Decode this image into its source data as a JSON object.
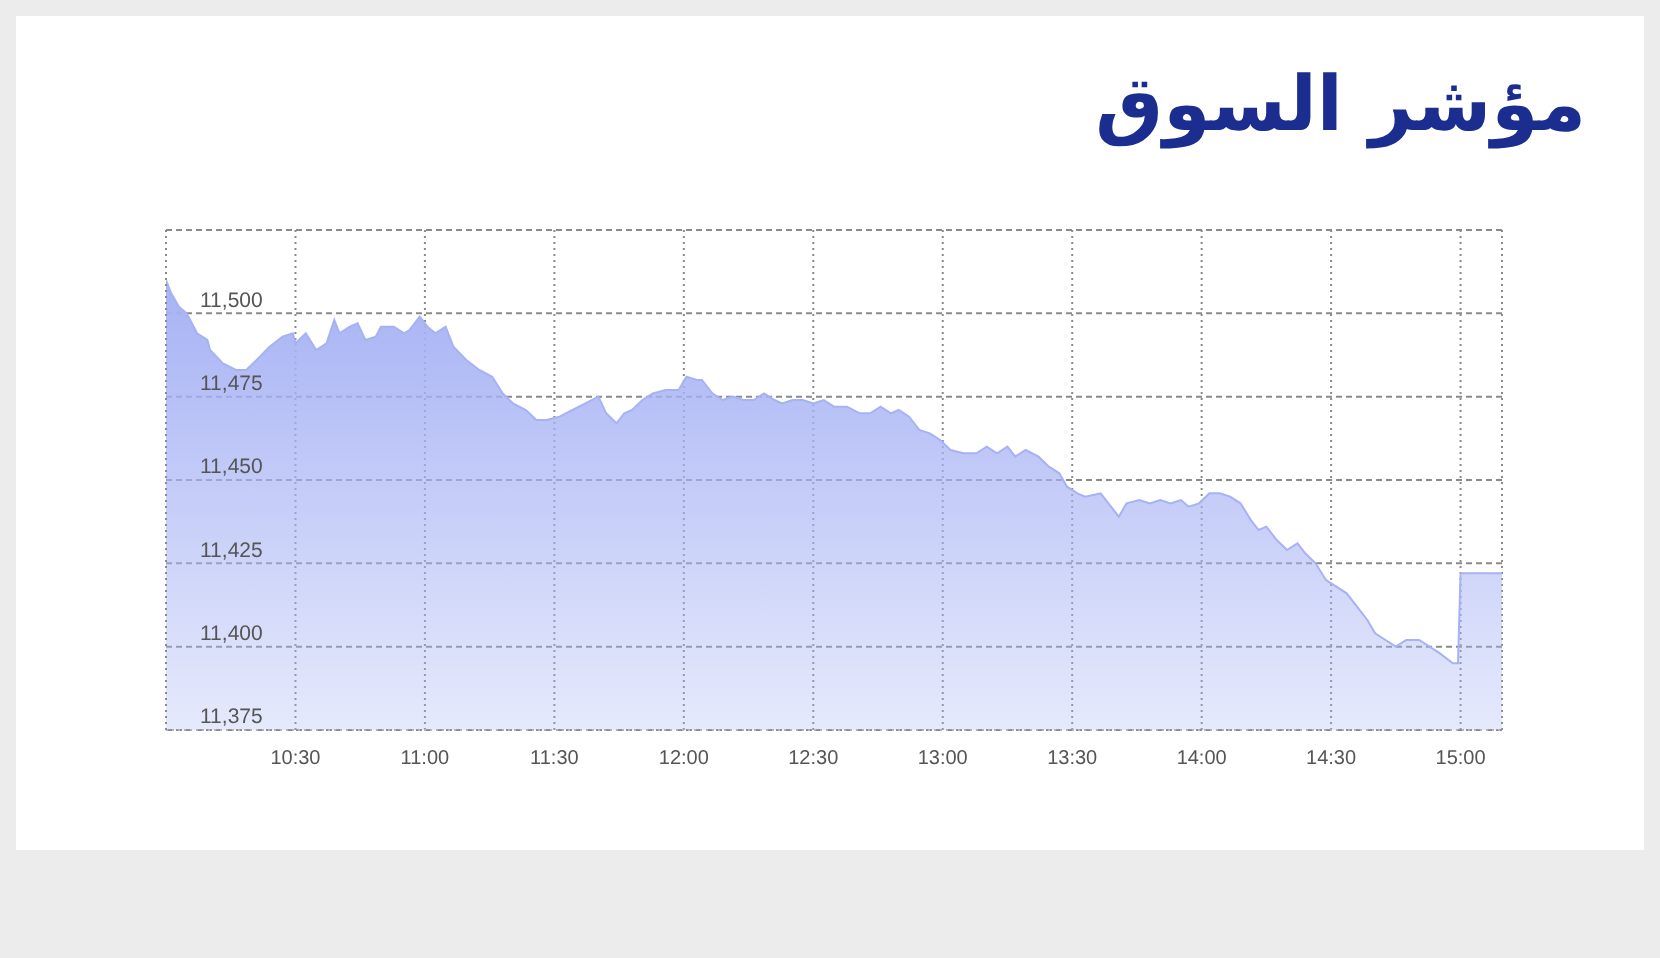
{
  "chart_data": {
    "type": "area",
    "title": "مؤشر السوق",
    "x": [
      10.0,
      10.02,
      10.05,
      10.08,
      10.12,
      10.16,
      10.17,
      10.22,
      10.27,
      10.31,
      10.35,
      10.4,
      10.45,
      10.49,
      10.5,
      10.54,
      10.58,
      10.62,
      10.65,
      10.67,
      10.71,
      10.74,
      10.77,
      10.81,
      10.83,
      10.88,
      10.92,
      10.94,
      10.98,
      11.01,
      11.04,
      11.08,
      11.11,
      11.16,
      11.21,
      11.26,
      11.3,
      11.34,
      11.39,
      11.43,
      11.47,
      11.52,
      11.57,
      11.62,
      11.67,
      11.7,
      11.74,
      11.77,
      11.8,
      11.84,
      11.88,
      11.93,
      11.98,
      12.01,
      12.05,
      12.07,
      12.11,
      12.15,
      12.19,
      12.23,
      12.27,
      12.31,
      12.35,
      12.38,
      12.42,
      12.46,
      12.5,
      12.54,
      12.58,
      12.63,
      12.68,
      12.72,
      12.76,
      12.8,
      12.83,
      12.87,
      12.91,
      12.95,
      12.99,
      13.03,
      13.08,
      13.13,
      13.17,
      13.21,
      13.25,
      13.28,
      13.32,
      13.37,
      13.41,
      13.45,
      13.48,
      13.52,
      13.55,
      13.61,
      13.64,
      13.68,
      13.71,
      13.76,
      13.8,
      13.84,
      13.88,
      13.92,
      13.95,
      13.99,
      14.03,
      14.07,
      14.11,
      14.15,
      14.19,
      14.22,
      14.25,
      14.29,
      14.33,
      14.37,
      14.4,
      14.44,
      14.48,
      14.52,
      14.56,
      14.6,
      14.64,
      14.67,
      14.71,
      14.75,
      14.79,
      14.84,
      14.88,
      14.92,
      14.97,
      14.99,
      15.0,
      15.16
    ],
    "values": [
      11510,
      11506,
      11502,
      11500,
      11494,
      11492,
      11489,
      11485,
      11483,
      11483,
      11486,
      11490,
      11493,
      11494,
      11491,
      11494,
      11489,
      11491,
      11498,
      11494,
      11496,
      11497,
      11492,
      11493,
      11496,
      11496,
      11494,
      11495,
      11499,
      11496,
      11494,
      11496,
      11490,
      11486,
      11483,
      11481,
      11476,
      11473,
      11471,
      11468,
      11468,
      11469,
      11471,
      11473,
      11475,
      11470,
      11467,
      11470,
      11471,
      11474,
      11476,
      11477,
      11477,
      11481,
      11480,
      11480,
      11476,
      11474,
      11475,
      11474,
      11474,
      11476,
      11474,
      11473,
      11474,
      11474,
      11473,
      11474,
      11472,
      11472,
      11470,
      11470,
      11472,
      11470,
      11471,
      11469,
      11465,
      11464,
      11462,
      11459,
      11458,
      11458,
      11460,
      11458,
      11460,
      11457,
      11459,
      11457,
      11454,
      11452,
      11448,
      11446,
      11445,
      11446,
      11443,
      11439,
      11443,
      11444,
      11443,
      11444,
      11443,
      11444,
      11442,
      11443,
      11446,
      11446,
      11445,
      11443,
      11438,
      11435,
      11436,
      11432,
      11429,
      11431,
      11428,
      11425,
      11420,
      11418,
      11416,
      11412,
      11408,
      11404,
      11402,
      11400,
      11402,
      11402,
      11400,
      11398,
      11395,
      11395,
      11422,
      11422
    ],
    "color": "#a6b2f4",
    "xlim": [
      10,
      15.16
    ],
    "xticks": [
      {
        "value": 10.5,
        "label": "10:30"
      },
      {
        "value": 11,
        "label": "11:00"
      },
      {
        "value": 11.5,
        "label": "11:30"
      },
      {
        "value": 12,
        "label": "12:00"
      },
      {
        "value": 12.5,
        "label": "12:30"
      },
      {
        "value": 13,
        "label": "13:00"
      },
      {
        "value": 13.5,
        "label": "13:30"
      },
      {
        "value": 14,
        "label": "14:00"
      },
      {
        "value": 14.5,
        "label": "14:30"
      },
      {
        "value": 15,
        "label": "15:00"
      }
    ],
    "ylim": [
      11375,
      11525
    ],
    "yticks": [
      {
        "value": 11375,
        "label": "11,375"
      },
      {
        "value": 11400,
        "label": "11,400"
      },
      {
        "value": 11425,
        "label": "11,425"
      },
      {
        "value": 11450,
        "label": "11,450"
      },
      {
        "value": 11475,
        "label": "11,475"
      },
      {
        "value": 11500,
        "label": "11,500"
      }
    ],
    "grid": true
  }
}
